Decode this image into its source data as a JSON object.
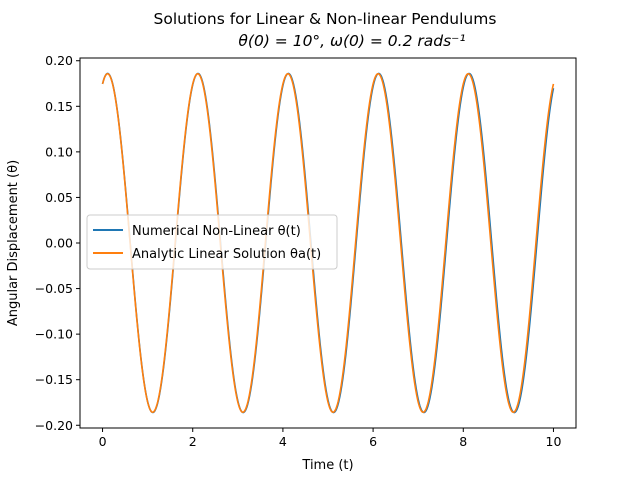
{
  "chart_data": {
    "type": "line",
    "title_line1": "Solutions for Linear & Non-linear Pendulums",
    "title_line2": "θ(0) = 10°, ω(0) = 0.2 rads⁻¹",
    "xlabel": "Time (t)",
    "ylabel": "Angular Displacement (θ)",
    "xlim": [
      -0.5,
      10.5
    ],
    "ylim": [
      -0.203,
      0.203
    ],
    "x_ticks": [
      0,
      2,
      4,
      6,
      8,
      10
    ],
    "x_tick_labels": [
      "0",
      "2",
      "4",
      "6",
      "8",
      "10"
    ],
    "y_ticks": [
      0.2,
      0.15,
      0.1,
      0.05,
      0.0,
      -0.05,
      -0.1,
      -0.15,
      -0.2
    ],
    "y_tick_labels": [
      "0.20",
      "0.15",
      "0.10",
      "0.05",
      "0.00",
      "−0.05",
      "−0.10",
      "−0.15",
      "−0.20"
    ],
    "grid": false,
    "legend_position": "center-left",
    "series": [
      {
        "name": "Numerical Non-Linear  θ(t)",
        "color": "#1f77b4",
        "amplitude": 0.186,
        "period": 2.0042,
        "theta0": 0.1745,
        "x_range": [
          0,
          10
        ],
        "endpoint": [
          10,
          0.16
        ]
      },
      {
        "name": "Analytic Linear Solution θa(t)",
        "color": "#ff7f0e",
        "amplitude": 0.1857,
        "period": 2.0,
        "theta0": 0.1745,
        "x_range": [
          0,
          10
        ],
        "endpoint": [
          10,
          0.167
        ]
      }
    ]
  }
}
